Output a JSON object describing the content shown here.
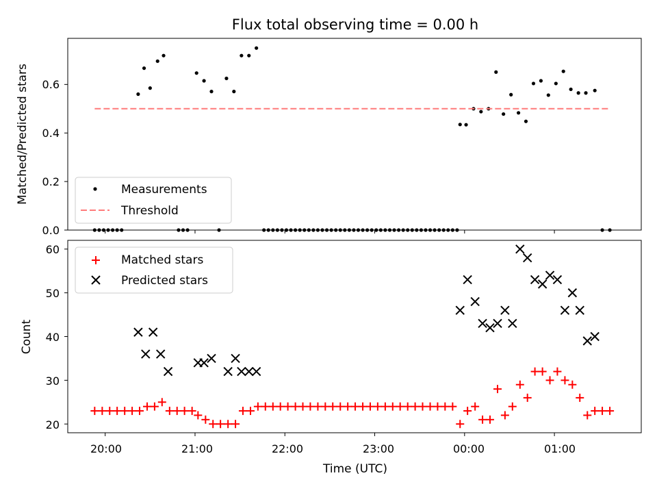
{
  "chart_data": [
    {
      "type": "scatter",
      "title": "Flux total observing time = 0.00 h",
      "ylabel": "Matched/Predicted stars",
      "xlabel": "",
      "x_unit": "hours (UTC; values past 24 are after midnight)",
      "xlim": [
        "19:35",
        "01:58"
      ],
      "ylim": [
        0,
        0.79
      ],
      "yticks": [
        0.0,
        0.2,
        0.4,
        0.6
      ],
      "ytick_labels": [
        "0.0",
        "0.2",
        "0.4",
        "0.6"
      ],
      "xtick_labels": [
        "20:00",
        "21:00",
        "22:00",
        "23:00",
        "00:00",
        "01:00"
      ],
      "legend": {
        "position": "lower-left",
        "entries": [
          "Measurements",
          "Threshold"
        ]
      },
      "series": [
        {
          "name": "Measurements",
          "marker": "dot",
          "color": "#000000",
          "x": [
            19.883,
            19.933,
            19.983,
            20.033,
            20.083,
            20.133,
            20.183,
            20.367,
            20.433,
            20.5,
            20.583,
            20.65,
            20.817,
            20.867,
            20.917,
            21.017,
            21.1,
            21.183,
            21.267,
            21.35,
            21.433,
            21.517,
            21.6,
            21.683,
            21.767,
            21.817,
            21.867,
            21.917,
            21.967,
            22.017,
            22.067,
            22.117,
            22.167,
            22.217,
            22.267,
            22.317,
            22.367,
            22.417,
            22.467,
            22.517,
            22.567,
            22.617,
            22.667,
            22.717,
            22.767,
            22.817,
            22.867,
            22.917,
            22.967,
            23.017,
            23.067,
            23.117,
            23.167,
            23.217,
            23.267,
            23.317,
            23.367,
            23.417,
            23.467,
            23.517,
            23.567,
            23.617,
            23.667,
            23.717,
            23.767,
            23.817,
            23.867,
            23.917,
            23.95,
            24.017,
            24.1,
            24.183,
            24.267,
            24.35,
            24.433,
            24.517,
            24.6,
            24.683,
            24.767,
            24.85,
            24.933,
            25.017,
            25.1,
            25.183,
            25.267,
            25.35,
            25.45,
            25.533,
            25.617
          ],
          "y": [
            0,
            0,
            0,
            0,
            0,
            0,
            0,
            0.56,
            0.667,
            0.585,
            0.696,
            0.719,
            0,
            0,
            0,
            0.647,
            0.615,
            0.571,
            0,
            0.625,
            0.571,
            0.719,
            0.719,
            0.75,
            0,
            0,
            0,
            0,
            0,
            0,
            0,
            0,
            0,
            0,
            0,
            0,
            0,
            0,
            0,
            0,
            0,
            0,
            0,
            0,
            0,
            0,
            0,
            0,
            0,
            0,
            0,
            0,
            0,
            0,
            0,
            0,
            0,
            0,
            0,
            0,
            0,
            0,
            0,
            0,
            0,
            0,
            0,
            0,
            0.435,
            0.434,
            0.5,
            0.488,
            0.5,
            0.651,
            0.478,
            0.558,
            0.483,
            0.448,
            0.604,
            0.615,
            0.556,
            0.604,
            0.654,
            0.58,
            0.565,
            0.565,
            0.575,
            0,
            0
          ]
        },
        {
          "name": "Threshold",
          "line_style": "dashed",
          "color": "#ff7a7a",
          "x": [
            19.883,
            25.617
          ],
          "y": [
            0.5,
            0.5
          ]
        }
      ]
    },
    {
      "type": "scatter",
      "title": "",
      "ylabel": "Count",
      "xlabel": "Time (UTC)",
      "x_unit": "hours (UTC; values past 24 are after midnight)",
      "xlim": [
        "19:35",
        "01:58"
      ],
      "ylim": [
        18,
        62
      ],
      "yticks": [
        20,
        30,
        40,
        50,
        60
      ],
      "ytick_labels": [
        "20",
        "30",
        "40",
        "50",
        "60"
      ],
      "xtick_labels": [
        "20:00",
        "21:00",
        "22:00",
        "23:00",
        "00:00",
        "01:00"
      ],
      "legend": {
        "position": "upper-left",
        "entries": [
          "Matched stars",
          "Predicted stars"
        ]
      },
      "series": [
        {
          "name": "Matched stars",
          "marker": "plus",
          "color": "#ff0000",
          "x": [
            19.883,
            19.967,
            20.05,
            20.133,
            20.217,
            20.3,
            20.383,
            20.467,
            20.55,
            20.633,
            20.717,
            20.8,
            20.883,
            20.967,
            21.033,
            21.117,
            21.2,
            21.283,
            21.367,
            21.45,
            21.533,
            21.617,
            21.7,
            21.783,
            21.867,
            21.95,
            22.033,
            22.117,
            22.2,
            22.283,
            22.367,
            22.45,
            22.533,
            22.617,
            22.7,
            22.783,
            22.867,
            22.95,
            23.033,
            23.117,
            23.2,
            23.283,
            23.367,
            23.45,
            23.533,
            23.617,
            23.7,
            23.783,
            23.867,
            23.95,
            24.033,
            24.117,
            24.2,
            24.283,
            24.367,
            24.45,
            24.533,
            24.617,
            24.7,
            24.783,
            24.867,
            24.95,
            25.033,
            25.117,
            25.2,
            25.283,
            25.367,
            25.45,
            25.533,
            25.617
          ],
          "y": [
            23,
            23,
            23,
            23,
            23,
            23,
            23,
            24,
            24,
            25,
            23,
            23,
            23,
            23,
            22,
            21,
            20,
            20,
            20,
            20,
            23,
            23,
            24,
            24,
            24,
            24,
            24,
            24,
            24,
            24,
            24,
            24,
            24,
            24,
            24,
            24,
            24,
            24,
            24,
            24,
            24,
            24,
            24,
            24,
            24,
            24,
            24,
            24,
            24,
            20,
            23,
            24,
            21,
            21,
            28,
            22,
            24,
            29,
            26,
            32,
            32,
            30,
            32,
            30,
            29,
            26,
            22,
            23,
            23,
            23
          ]
        },
        {
          "name": "Predicted stars",
          "marker": "x",
          "color": "#000000",
          "x": [
            20.367,
            20.45,
            20.533,
            20.617,
            20.7,
            21.033,
            21.1,
            21.183,
            21.367,
            21.45,
            21.517,
            21.6,
            21.683,
            23.95,
            24.033,
            24.117,
            24.2,
            24.283,
            24.367,
            24.45,
            24.533,
            24.617,
            24.7,
            24.783,
            24.867,
            24.95,
            25.033,
            25.117,
            25.2,
            25.283,
            25.367,
            25.45
          ],
          "y": [
            41,
            36,
            41,
            36,
            32,
            34,
            34,
            35,
            32,
            35,
            32,
            32,
            32,
            46,
            53,
            48,
            43,
            42,
            43,
            46,
            43,
            60,
            58,
            53,
            52,
            54,
            53,
            46,
            50,
            46,
            39,
            40
          ]
        }
      ]
    }
  ]
}
